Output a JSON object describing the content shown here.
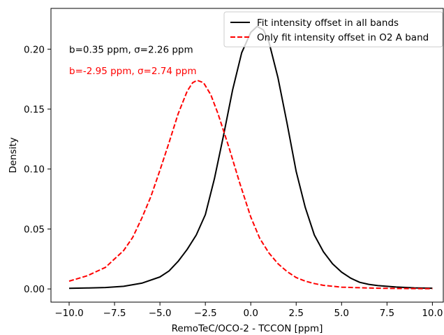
{
  "chart_data": {
    "type": "line",
    "title": "",
    "xlabel": "RemoTeC/OCO-2 - TCCON [ppm]",
    "ylabel": "Density",
    "xlim": [
      -11.0,
      10.6
    ],
    "ylim": [
      -0.011,
      0.234
    ],
    "xticks": [
      -10.0,
      -7.5,
      -5.0,
      -2.5,
      0.0,
      2.5,
      5.0,
      7.5,
      10.0
    ],
    "xtick_labels": [
      "−10.0",
      "−7.5",
      "−5.0",
      "−2.5",
      "0.0",
      "2.5",
      "5.0",
      "7.5",
      "10.0"
    ],
    "yticks": [
      0.0,
      0.05,
      0.1,
      0.15,
      0.2
    ],
    "ytick_labels": [
      "0.00",
      "0.05",
      "0.10",
      "0.15",
      "0.20"
    ],
    "grid": false,
    "legend_position": "top-right",
    "series": [
      {
        "name": "Fit intensity offset in all bands",
        "color": "#000000",
        "dash": "solid",
        "x": [
          -10.0,
          -9.0,
          -8.0,
          -7.0,
          -6.0,
          -5.0,
          -4.5,
          -4.0,
          -3.5,
          -3.0,
          -2.5,
          -2.0,
          -1.5,
          -1.0,
          -0.5,
          0.0,
          0.35,
          0.7,
          1.0,
          1.5,
          2.0,
          2.5,
          3.0,
          3.5,
          4.0,
          4.5,
          5.0,
          5.5,
          6.0,
          6.5,
          7.0,
          8.0,
          9.0,
          10.0
        ],
        "y": [
          0.0005,
          0.0008,
          0.0012,
          0.0022,
          0.0048,
          0.01,
          0.015,
          0.023,
          0.033,
          0.045,
          0.062,
          0.092,
          0.128,
          0.166,
          0.197,
          0.214,
          0.219,
          0.216,
          0.206,
          0.176,
          0.138,
          0.098,
          0.068,
          0.045,
          0.031,
          0.021,
          0.014,
          0.009,
          0.0055,
          0.0038,
          0.0028,
          0.0016,
          0.0009,
          0.0006
        ]
      },
      {
        "name": "Only fit intensity offset in O2 A band",
        "color": "#ff0000",
        "dash": "dashed",
        "x": [
          -10.0,
          -9.0,
          -8.0,
          -7.0,
          -6.5,
          -6.0,
          -5.5,
          -5.0,
          -4.5,
          -4.0,
          -3.5,
          -3.2,
          -2.95,
          -2.6,
          -2.2,
          -1.8,
          -1.2,
          -0.6,
          0.0,
          0.5,
          1.0,
          1.5,
          2.0,
          2.5,
          3.0,
          3.5,
          4.0,
          5.0,
          6.0,
          7.0,
          8.0,
          9.0,
          10.0
        ],
        "y": [
          0.0065,
          0.011,
          0.018,
          0.032,
          0.043,
          0.059,
          0.077,
          0.099,
          0.122,
          0.146,
          0.165,
          0.172,
          0.174,
          0.172,
          0.162,
          0.146,
          0.118,
          0.088,
          0.06,
          0.042,
          0.03,
          0.021,
          0.0145,
          0.0095,
          0.0065,
          0.0045,
          0.003,
          0.0015,
          0.001,
          0.0006,
          0.0004,
          0.0003,
          0.0002
        ]
      }
    ],
    "annotations": [
      {
        "text": "b=0.35 ppm, σ=2.26 ppm",
        "color": "#000000",
        "x": -10.0,
        "y": 0.2
      },
      {
        "text": "b=-2.95 ppm, σ=2.74 ppm",
        "color": "#ff0000",
        "x": -10.0,
        "y": 0.182
      }
    ]
  }
}
